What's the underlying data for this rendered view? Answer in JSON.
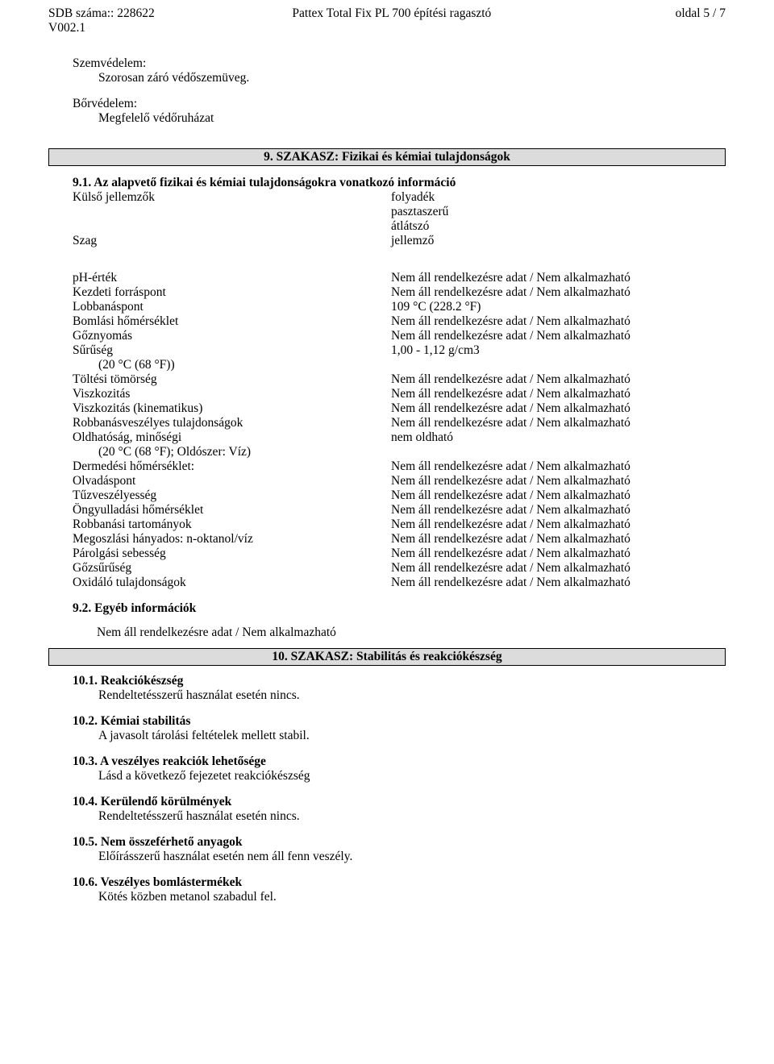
{
  "header": {
    "sdb_label": "SDB száma:: 228622",
    "version": "V002.1",
    "product": "Pattex Total Fix PL 700 építési ragasztó",
    "page": "oldal 5 / 7"
  },
  "intro": {
    "eye_label": "Szemvédelem:",
    "eye_value": "Szorosan záró védőszemüveg.",
    "skin_label": "Bőrvédelem:",
    "skin_value": "Megfelelő védőruházat"
  },
  "section9": {
    "title": "9. SZAKASZ: Fizikai és kémiai tulajdonságok",
    "s91_label": "9.1. Az alapvető fizikai és kémiai tulajdonságokra vonatkozó információ",
    "appearance_label": "Külső jellemzők",
    "appearance_values": [
      "folyadék",
      "pasztaszerű",
      "átlátszó"
    ],
    "odor_label": "Szag",
    "odor_value": "jellemző",
    "properties": [
      {
        "name": "pH-érték",
        "value": "Nem áll rendelkezésre adat / Nem alkalmazható"
      },
      {
        "name": "Kezdeti forráspont",
        "value": "Nem áll rendelkezésre adat / Nem alkalmazható"
      },
      {
        "name": "Lobbanáspont",
        "value": "109 °C (228.2 °F)"
      },
      {
        "name": "Bomlási hőmérséklet",
        "value": "Nem áll rendelkezésre adat / Nem alkalmazható"
      },
      {
        "name": "Gőznyomás",
        "value": "Nem áll rendelkezésre adat / Nem alkalmazható"
      },
      {
        "name": "Sűrűség",
        "value": "1,00 - 1,12 g/cm3",
        "sub": "(20 °C (68 °F))"
      },
      {
        "name": "Töltési tömörség",
        "value": "Nem áll rendelkezésre adat / Nem alkalmazható"
      },
      {
        "name": "Viszkozitás",
        "value": "Nem áll rendelkezésre adat / Nem alkalmazható"
      },
      {
        "name": "Viszkozitás (kinematikus)",
        "value": "Nem áll rendelkezésre adat / Nem alkalmazható"
      },
      {
        "name": "Robbanásveszélyes tulajdonságok",
        "value": "Nem áll rendelkezésre adat / Nem alkalmazható"
      },
      {
        "name": "Oldhatóság, minőségi",
        "value": "nem oldható",
        "sub": "(20 °C (68 °F); Oldószer: Víz)"
      },
      {
        "name": "Dermedési hőmérséklet:",
        "value": "Nem áll rendelkezésre adat / Nem alkalmazható"
      },
      {
        "name": "Olvadáspont",
        "value": "Nem áll rendelkezésre adat / Nem alkalmazható"
      },
      {
        "name": "Tűzveszélyesség",
        "value": "Nem áll rendelkezésre adat / Nem alkalmazható"
      },
      {
        "name": "Öngyulladási hőmérséklet",
        "value": "Nem áll rendelkezésre adat / Nem alkalmazható"
      },
      {
        "name": "Robbanási tartományok",
        "value": "Nem áll rendelkezésre adat / Nem alkalmazható"
      },
      {
        "name": "Megoszlási hányados: n-oktanol/víz",
        "value": "Nem áll rendelkezésre adat / Nem alkalmazható"
      },
      {
        "name": "Párolgási sebesség",
        "value": "Nem áll rendelkezésre adat / Nem alkalmazható"
      },
      {
        "name": "Gőzsűrűség",
        "value": "Nem áll rendelkezésre adat / Nem alkalmazható"
      },
      {
        "name": "Oxidáló tulajdonságok",
        "value": "Nem áll rendelkezésre adat / Nem alkalmazható"
      }
    ],
    "s92_label": "9.2. Egyéb információk",
    "s92_value": "Nem áll rendelkezésre adat / Nem alkalmazható"
  },
  "section10": {
    "title": "10. SZAKASZ: Stabilitás és reakciókészség",
    "items": [
      {
        "head": "10.1. Reakciókészség",
        "body": "Rendeltetésszerű használat esetén nincs."
      },
      {
        "head": "10.2. Kémiai stabilitás",
        "body": "A javasolt tárolási feltételek mellett stabil."
      },
      {
        "head": "10.3. A veszélyes reakciók lehetősége",
        "body": "Lásd a következő fejezetet reakciókészség"
      },
      {
        "head": "10.4. Kerülendő körülmények",
        "body": "Rendeltetésszerű használat esetén nincs."
      },
      {
        "head": "10.5. Nem összeférhető anyagok",
        "body": "Előírásszerű használat esetén nem áll fenn veszély."
      },
      {
        "head": "10.6. Veszélyes bomlástermékek",
        "body": "Kötés közben metanol szabadul fel."
      }
    ]
  }
}
